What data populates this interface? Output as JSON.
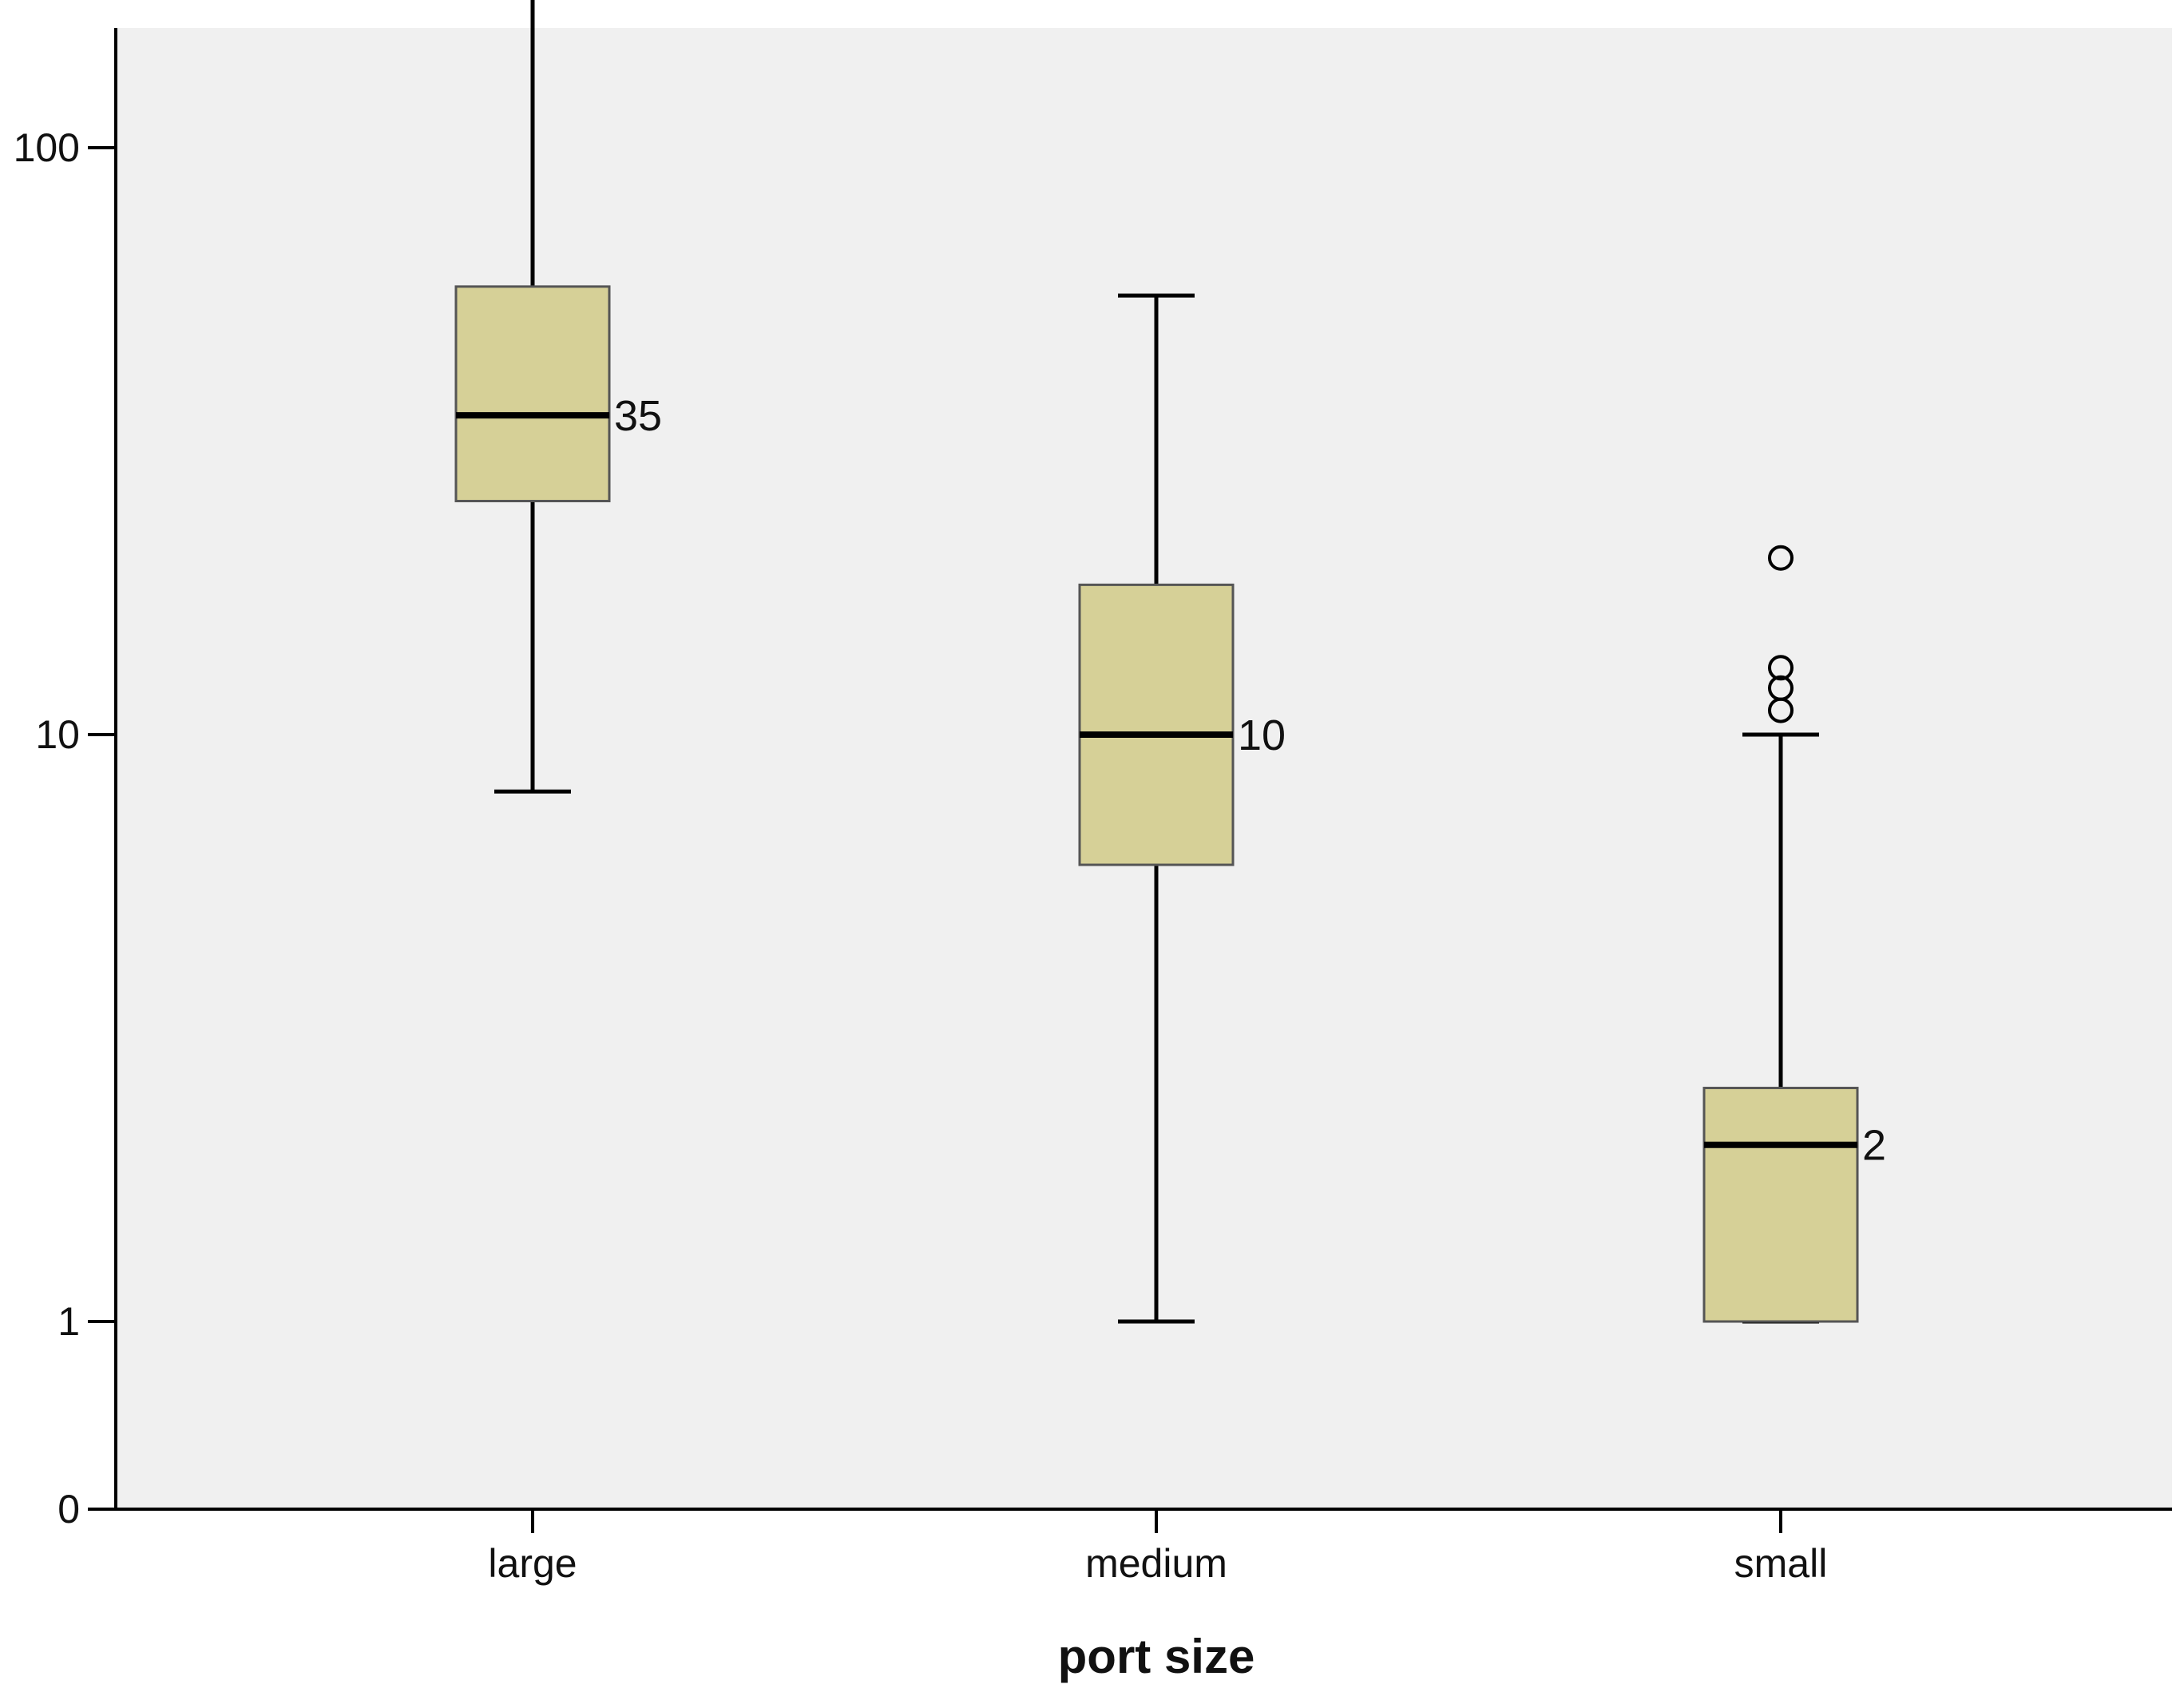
{
  "chart_data": {
    "type": "boxplot",
    "xlabel": "port size",
    "ylabel": "",
    "yscale": "log",
    "y_ticks": [
      {
        "value": 0,
        "label": "0"
      },
      {
        "value": 1,
        "label": "1"
      },
      {
        "value": 10,
        "label": "10"
      },
      {
        "value": 100,
        "label": "100"
      }
    ],
    "categories": [
      "large",
      "medium",
      "small"
    ],
    "boxes": [
      {
        "category": "large",
        "whisker_low": 8,
        "q1": 25,
        "median": 35,
        "q3": 58,
        "whisker_high": 180,
        "median_label": "35",
        "outliers": []
      },
      {
        "category": "medium",
        "whisker_low": 1,
        "q1": 6,
        "median": 10,
        "q3": 18,
        "whisker_high": 56,
        "median_label": "10",
        "outliers": []
      },
      {
        "category": "small",
        "whisker_low": 1,
        "q1": 1,
        "median": 2,
        "q3": 2.5,
        "whisker_high": 10,
        "median_label": "2",
        "outliers": [
          11,
          12,
          13,
          20
        ]
      }
    ],
    "colors": {
      "plot_background": "#f0f0f0",
      "box_fill": "#d6d097",
      "stroke": "#000000"
    },
    "grid": false,
    "legend": "none"
  }
}
